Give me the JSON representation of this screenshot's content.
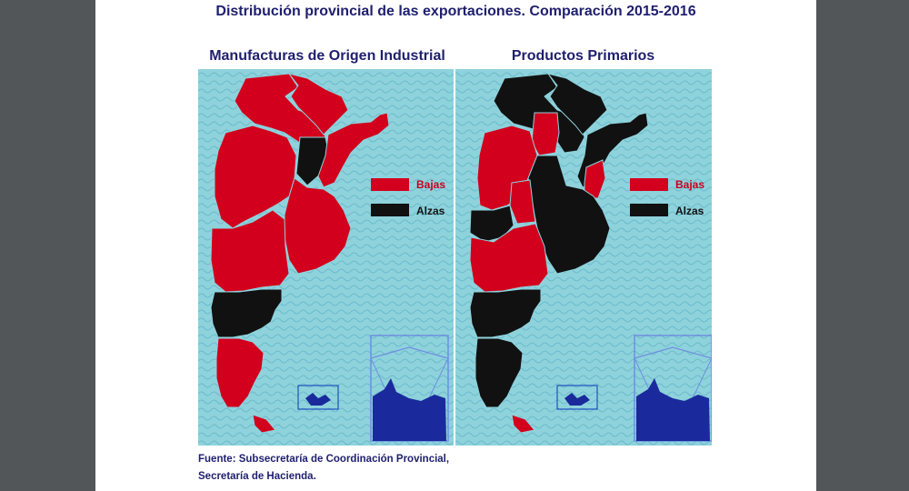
{
  "title": "Distribución provincial de las exportaciones. Comparación 2015-2016",
  "maps": {
    "left": {
      "title": "Manufacturas de Origen Industrial"
    },
    "right": {
      "title": "Productos Primarios"
    }
  },
  "legend": {
    "bajas": {
      "label": "Bajas",
      "color": "#d2001c"
    },
    "alzas": {
      "label": "Alzas",
      "color": "#111111"
    }
  },
  "source": {
    "line1": "Fuente: Subsecretaría de Coordinación Provincial,",
    "line2": "Secretaría de Hacienda."
  },
  "colors": {
    "background_water": "#8ed2dc",
    "antarctica_fill": "#1a2a9c",
    "antarctica_frame": "#6f8fe0",
    "title_text": "#1f1f6e"
  }
}
